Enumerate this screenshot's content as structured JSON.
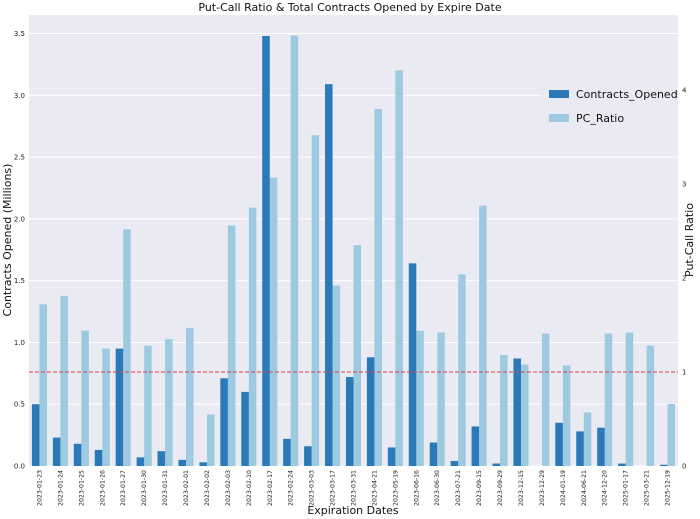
{
  "chart_data": {
    "type": "bar",
    "title": "Put-Call Ratio & Total Contracts Opened by Expire Date",
    "xlabel": "Expiration Dates",
    "ylabel_left": "Contracts Opened (Millions)",
    "ylabel_right": "Put-Call Ratio",
    "ylim_left": [
      0,
      3.65
    ],
    "ylim_right": [
      0,
      4.8
    ],
    "yticks_left": [
      "0.0",
      "0.5",
      "1.0",
      "1.5",
      "2.0",
      "2.5",
      "3.0",
      "3.5"
    ],
    "yticks_right": [
      "0",
      "1",
      "2",
      "3",
      "4"
    ],
    "reference_line": {
      "axis": "right",
      "value": 1.0,
      "color": "#d64545"
    },
    "categories": [
      "2023-01-23",
      "2023-01-24",
      "2023-01-25",
      "2023-01-26",
      "2023-01-27",
      "2023-01-30",
      "2023-01-31",
      "2023-02-01",
      "2023-02-02",
      "2023-02-03",
      "2023-02-10",
      "2023-02-17",
      "2023-02-24",
      "2023-03-03",
      "2023-03-17",
      "2023-03-31",
      "2023-04-21",
      "2023-05-19",
      "2023-06-16",
      "2023-06-30",
      "2023-07-21",
      "2023-09-15",
      "2023-09-29",
      "2023-12-15",
      "2023-12-29",
      "2024-01-19",
      "2024-06-21",
      "2024-12-20",
      "2025-01-17",
      "2025-03-21",
      "2025-12-19"
    ],
    "series": [
      {
        "name": "Contracts_Opened",
        "axis": "left",
        "color": "#2a7ab9",
        "values": [
          0.5,
          0.23,
          0.18,
          0.13,
          0.95,
          0.07,
          0.12,
          0.05,
          0.03,
          0.71,
          0.6,
          3.48,
          0.22,
          0.16,
          3.09,
          0.72,
          0.88,
          0.15,
          1.64,
          0.19,
          0.04,
          0.32,
          0.02,
          0.87,
          0.0,
          0.35,
          0.28,
          0.31,
          0.02,
          0.0,
          0.01
        ]
      },
      {
        "name": "PC_Ratio",
        "axis": "right",
        "color": "#9ecae1",
        "values": [
          1.72,
          1.81,
          1.44,
          1.25,
          2.52,
          1.28,
          1.35,
          1.47,
          0.55,
          2.56,
          2.75,
          3.07,
          4.58,
          3.52,
          1.92,
          2.35,
          3.8,
          4.21,
          1.44,
          1.42,
          2.04,
          2.77,
          1.18,
          1.08,
          1.41,
          1.07,
          0.57,
          1.41,
          1.42,
          1.28,
          0.66
        ]
      }
    ],
    "legend_position": "upper-right"
  }
}
